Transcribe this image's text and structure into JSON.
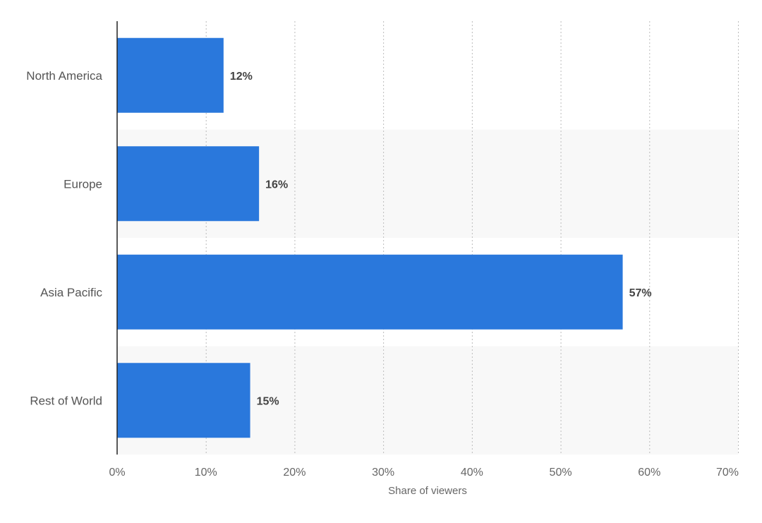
{
  "chart_data": {
    "type": "bar",
    "orientation": "horizontal",
    "categories": [
      "North America",
      "Europe",
      "Asia Pacific",
      "Rest of World"
    ],
    "values": [
      12,
      16,
      57,
      15
    ],
    "value_labels": [
      "12%",
      "16%",
      "57%",
      "15%"
    ],
    "title": "",
    "xlabel": "Share of viewers",
    "ylabel": "",
    "xlim": [
      0,
      70
    ],
    "x_ticks": [
      0,
      10,
      20,
      30,
      40,
      50,
      60,
      70
    ],
    "x_tick_labels": [
      "0%",
      "10%",
      "20%",
      "30%",
      "40%",
      "50%",
      "60%",
      "70%"
    ],
    "grid": true,
    "bar_color": "#2a78dc",
    "band_color": "#f8f8f8",
    "grid_color": "#bbbbbb"
  }
}
